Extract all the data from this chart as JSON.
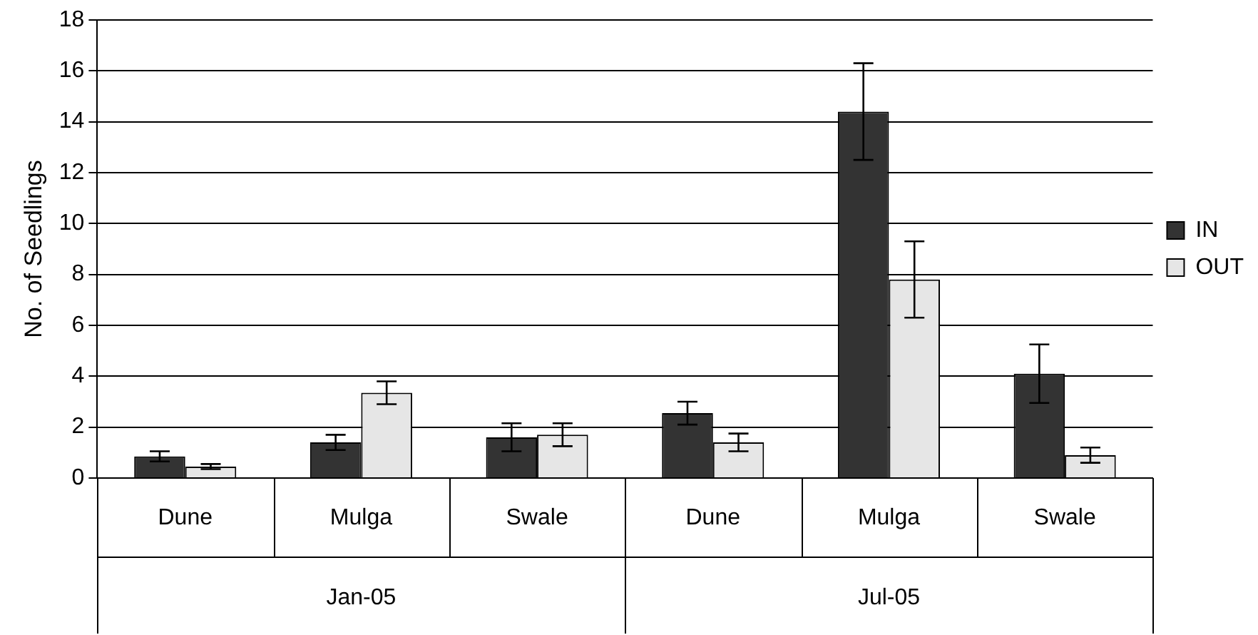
{
  "chart_data": {
    "type": "bar",
    "ylabel": "No. of Seedlings",
    "categories": [
      "Dune",
      "Mulga",
      "Swale",
      "Dune",
      "Mulga",
      "Swale"
    ],
    "annotations": [
      "Jan-05",
      "Jul-05"
    ],
    "series": [
      {
        "name": "IN",
        "color": "#333333",
        "values": [
          0.85,
          1.4,
          1.6,
          2.55,
          14.4,
          4.1
        ],
        "errors": [
          0.2,
          0.3,
          0.55,
          0.45,
          1.9,
          1.15
        ]
      },
      {
        "name": "OUT",
        "color": "#e6e6e6",
        "values": [
          0.45,
          3.35,
          1.7,
          1.4,
          7.8,
          0.9
        ],
        "errors": [
          0.1,
          0.45,
          0.45,
          0.35,
          1.5,
          0.3
        ]
      }
    ],
    "ylim": [
      0,
      18
    ],
    "yticks": [
      0,
      2,
      4,
      6,
      8,
      10,
      12,
      14,
      16,
      18
    ],
    "grid": "y",
    "legend": "right"
  }
}
